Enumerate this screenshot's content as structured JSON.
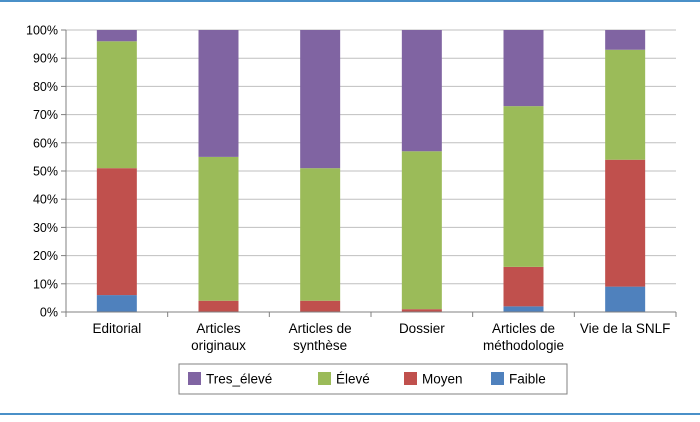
{
  "colors": {
    "frame": "#4a90c8",
    "Tres_élevé": "#8064a2",
    "Élevé": "#9bbb59",
    "Moyen": "#c0504d",
    "Faible": "#4f81bd",
    "grid": "#bfbfbf"
  },
  "chart_data": {
    "type": "bar",
    "stacked": "percent",
    "title": "",
    "xlabel": "",
    "ylabel": "",
    "ylim": [
      0,
      100
    ],
    "y_ticks": [
      "0%",
      "10%",
      "20%",
      "30%",
      "40%",
      "50%",
      "60%",
      "70%",
      "80%",
      "90%",
      "100%"
    ],
    "categories": [
      [
        "Editorial"
      ],
      [
        "Articles",
        "originaux"
      ],
      [
        "Articles de",
        "synthèse"
      ],
      [
        "Dossier"
      ],
      [
        "Articles de",
        "méthodologie"
      ],
      [
        "Vie de la SNLF"
      ]
    ],
    "series": [
      {
        "name": "Faible",
        "values": [
          6,
          0,
          0,
          0,
          2,
          9
        ]
      },
      {
        "name": "Moyen",
        "values": [
          45,
          4,
          4,
          1,
          14,
          45
        ]
      },
      {
        "name": "Élevé",
        "values": [
          45,
          51,
          47,
          56,
          57,
          39
        ]
      },
      {
        "name": "Tres_élevé",
        "values": [
          4,
          45,
          49,
          43,
          27,
          7
        ]
      }
    ],
    "legend": {
      "position": "bottom",
      "order": [
        "Tres_élevé",
        "Élevé",
        "Moyen",
        "Faible"
      ]
    },
    "grid": true
  }
}
